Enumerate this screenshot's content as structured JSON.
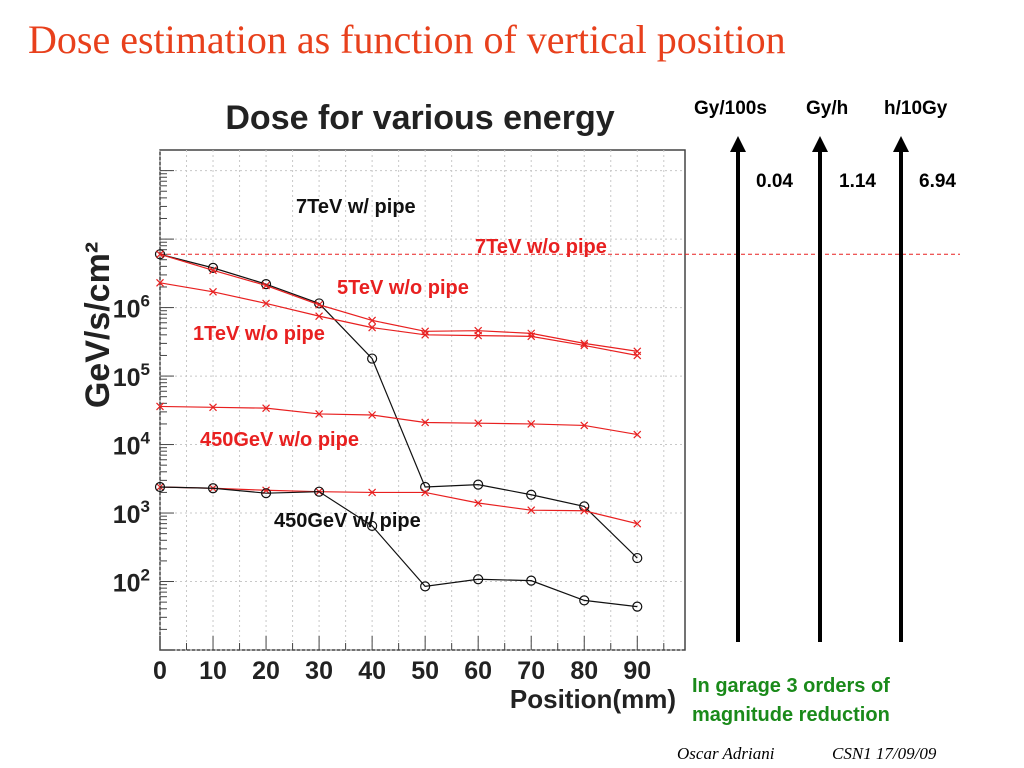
{
  "slide": {
    "title": "Dose estimation as function of vertical position",
    "footer_author": "Oscar Adriani",
    "footer_event": "CSN1 17/09/09",
    "note_line1": "In garage 3 orders of",
    "note_line2": "magnitude reduction"
  },
  "units_panel": {
    "headers": [
      "Gy/100s",
      "Gy/h",
      "h/10Gy"
    ],
    "values": [
      "0.04",
      "1.14",
      "6.94"
    ]
  },
  "chart_data": {
    "type": "line",
    "title": "Dose for various energy",
    "xlabel": "Position(mm)",
    "ylabel": "GeV/s/cm²",
    "y_scale": "log",
    "xlim": [
      0,
      99
    ],
    "ylim": [
      10,
      200000000
    ],
    "x_ticks": [
      "0",
      "10",
      "20",
      "30",
      "40",
      "50",
      "60",
      "70",
      "80",
      "90"
    ],
    "y_ticks": [
      {
        "base": "10",
        "exp": "2",
        "value": 100
      },
      {
        "base": "10",
        "exp": "3",
        "value": 1000
      },
      {
        "base": "10",
        "exp": "4",
        "value": 10000
      },
      {
        "base": "10",
        "exp": "5",
        "value": 100000
      },
      {
        "base": "10",
        "exp": "6",
        "value": 1000000
      }
    ],
    "grid": true,
    "reference_value": 6000000,
    "x": [
      0,
      10,
      20,
      30,
      40,
      50,
      60,
      70,
      80,
      90
    ],
    "colors": {
      "with_pipe": "#111111",
      "without_pipe": "#e82020",
      "reference": "#e82020"
    },
    "series": [
      {
        "name": "7TeV w/ pipe",
        "marker": "circle",
        "color": "#111111",
        "values": [
          6000000,
          3800000,
          2200000,
          1150000,
          180000,
          2400,
          2600,
          1850,
          1250,
          220
        ]
      },
      {
        "name": "7TeV w/o pipe",
        "marker": "x",
        "color": "#e82020",
        "values": [
          6000000,
          3500000,
          2100000,
          1100000,
          650000,
          450000,
          460000,
          420000,
          300000,
          230000
        ]
      },
      {
        "name": "5TeV w/o pipe",
        "marker": "x",
        "color": "#e82020",
        "values": [
          2300000,
          1700000,
          1150000,
          750000,
          510000,
          400000,
          390000,
          380000,
          280000,
          200000
        ]
      },
      {
        "name": "1TeV w/o pipe",
        "marker": "x",
        "color": "#e82020",
        "values": [
          36000,
          35000,
          34000,
          28000,
          27000,
          21000,
          20500,
          20000,
          19000,
          14000
        ]
      },
      {
        "name": "450GeV w/o pipe",
        "marker": "x",
        "color": "#e82020",
        "values": [
          2400,
          2300,
          2150,
          2050,
          2000,
          2000,
          1400,
          1100,
          1080,
          700
        ]
      },
      {
        "name": "450GeV w/ pipe",
        "marker": "circle",
        "color": "#111111",
        "values": [
          2400,
          2300,
          1950,
          2050,
          650,
          85,
          108,
          103,
          53,
          43
        ]
      }
    ],
    "annotations": [
      {
        "text": "7TeV w/ pipe",
        "color": "#111111"
      },
      {
        "text": "7TeV w/o pipe",
        "color": "#e82020"
      },
      {
        "text": "5TeV w/o pipe",
        "color": "#e82020"
      },
      {
        "text": "1TeV w/o pipe",
        "color": "#e82020"
      },
      {
        "text": "450GeV w/o pipe",
        "color": "#e82020"
      },
      {
        "text": "450GeV w/ pipe",
        "color": "#111111"
      }
    ]
  }
}
